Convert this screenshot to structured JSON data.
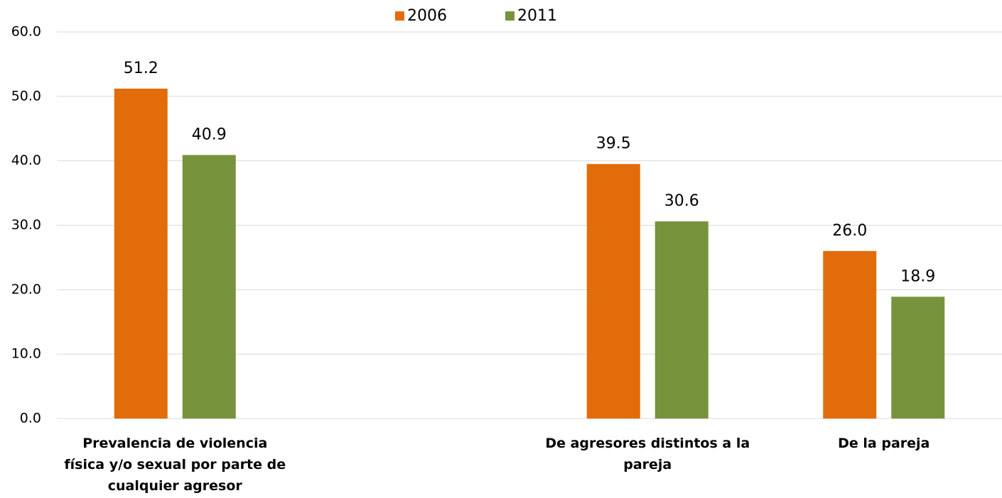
{
  "chart_data": {
    "type": "bar",
    "categories": [
      "Prevalencia de violencia física y/o sexual por parte de cualquier agresor",
      null,
      "De agresores distintos a la pareja",
      "De la pareja"
    ],
    "series": [
      {
        "name": "2006",
        "color": "#e36c0a",
        "values": [
          51.2,
          null,
          39.5,
          26.0
        ],
        "value_labels": [
          "51.2",
          null,
          "39.5",
          "26.0"
        ]
      },
      {
        "name": "2011",
        "color": "#77933c",
        "values": [
          40.9,
          null,
          30.6,
          18.9
        ],
        "value_labels": [
          "40.9",
          null,
          "30.6",
          "18.9"
        ]
      }
    ],
    "ylim": [
      0,
      60
    ],
    "yticks": [
      {
        "value": 0,
        "label": "0.0"
      },
      {
        "value": 10,
        "label": "10.0"
      },
      {
        "value": 20,
        "label": "20.0"
      },
      {
        "value": 30,
        "label": "30.0"
      },
      {
        "value": 40,
        "label": "40.0"
      },
      {
        "value": 50,
        "label": "50.0"
      },
      {
        "value": 60,
        "label": "60.0"
      }
    ],
    "grid": true,
    "legend": "top"
  }
}
